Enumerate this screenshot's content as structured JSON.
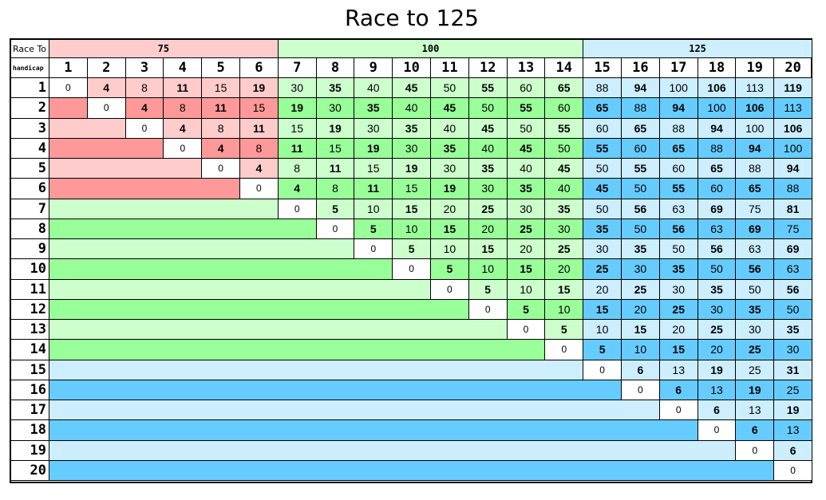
{
  "title": "Race to 125",
  "race_to_label": "Race To",
  "handicap_label": "handicap",
  "groups": [
    {
      "label": "75",
      "from": 1,
      "to": 6,
      "header_color": "#ffcccc",
      "light": "#ffcccc",
      "dark": "#ff9999"
    },
    {
      "label": "100",
      "from": 7,
      "to": 14,
      "header_color": "#ccffcc",
      "light": "#ccffcc",
      "dark": "#99ff99"
    },
    {
      "label": "125",
      "from": 15,
      "to": 20,
      "header_color": "#cceeff",
      "light": "#cceeff",
      "dark": "#66ccff"
    }
  ],
  "columns": [
    "1",
    "2",
    "3",
    "4",
    "5",
    "6",
    "7",
    "8",
    "9",
    "10",
    "11",
    "12",
    "13",
    "14",
    "15",
    "16",
    "17",
    "18",
    "19",
    "20"
  ],
  "rows": [
    {
      "label": "1",
      "values": [
        "0",
        "4",
        "8",
        "11",
        "15",
        "19",
        "30",
        "35",
        "40",
        "45",
        "50",
        "55",
        "60",
        "65",
        "88",
        "94",
        "100",
        "106",
        "113",
        "119"
      ]
    },
    {
      "label": "2",
      "values": [
        "0",
        "4",
        "8",
        "11",
        "15",
        "19",
        "30",
        "35",
        "40",
        "45",
        "50",
        "55",
        "60",
        "65",
        "88",
        "94",
        "100",
        "106",
        "113"
      ]
    },
    {
      "label": "3",
      "values": [
        "0",
        "4",
        "8",
        "11",
        "15",
        "19",
        "30",
        "35",
        "40",
        "45",
        "50",
        "55",
        "60",
        "65",
        "88",
        "94",
        "100",
        "106"
      ]
    },
    {
      "label": "4",
      "values": [
        "0",
        "4",
        "8",
        "11",
        "15",
        "19",
        "30",
        "35",
        "40",
        "45",
        "50",
        "55",
        "60",
        "65",
        "88",
        "94",
        "100"
      ]
    },
    {
      "label": "5",
      "values": [
        "0",
        "4",
        "8",
        "11",
        "15",
        "19",
        "30",
        "35",
        "40",
        "45",
        "50",
        "55",
        "60",
        "65",
        "88",
        "94"
      ]
    },
    {
      "label": "6",
      "values": [
        "0",
        "4",
        "8",
        "11",
        "15",
        "19",
        "30",
        "35",
        "40",
        "45",
        "50",
        "55",
        "60",
        "65",
        "88"
      ]
    },
    {
      "label": "7",
      "values": [
        "0",
        "5",
        "10",
        "15",
        "20",
        "25",
        "30",
        "35",
        "50",
        "56",
        "63",
        "69",
        "75",
        "81"
      ]
    },
    {
      "label": "8",
      "values": [
        "0",
        "5",
        "10",
        "15",
        "20",
        "25",
        "30",
        "35",
        "50",
        "56",
        "63",
        "69",
        "75"
      ]
    },
    {
      "label": "9",
      "values": [
        "0",
        "5",
        "10",
        "15",
        "20",
        "25",
        "30",
        "35",
        "50",
        "56",
        "63",
        "69"
      ]
    },
    {
      "label": "10",
      "values": [
        "0",
        "5",
        "10",
        "15",
        "20",
        "25",
        "30",
        "35",
        "50",
        "56",
        "63"
      ]
    },
    {
      "label": "11",
      "values": [
        "0",
        "5",
        "10",
        "15",
        "20",
        "25",
        "30",
        "35",
        "50",
        "56"
      ]
    },
    {
      "label": "12",
      "values": [
        "0",
        "5",
        "10",
        "15",
        "20",
        "25",
        "30",
        "35",
        "50"
      ]
    },
    {
      "label": "13",
      "values": [
        "0",
        "5",
        "10",
        "15",
        "20",
        "25",
        "30",
        "35"
      ]
    },
    {
      "label": "14",
      "values": [
        "0",
        "5",
        "10",
        "15",
        "20",
        "25",
        "30"
      ]
    },
    {
      "label": "15",
      "values": [
        "0",
        "6",
        "13",
        "19",
        "25",
        "31"
      ]
    },
    {
      "label": "16",
      "values": [
        "0",
        "6",
        "13",
        "19",
        "25"
      ]
    },
    {
      "label": "17",
      "values": [
        "0",
        "6",
        "13",
        "19"
      ]
    },
    {
      "label": "18",
      "values": [
        "0",
        "6",
        "13"
      ]
    },
    {
      "label": "19",
      "values": [
        "0",
        "6"
      ]
    },
    {
      "label": "20",
      "values": [
        "0"
      ]
    }
  ]
}
